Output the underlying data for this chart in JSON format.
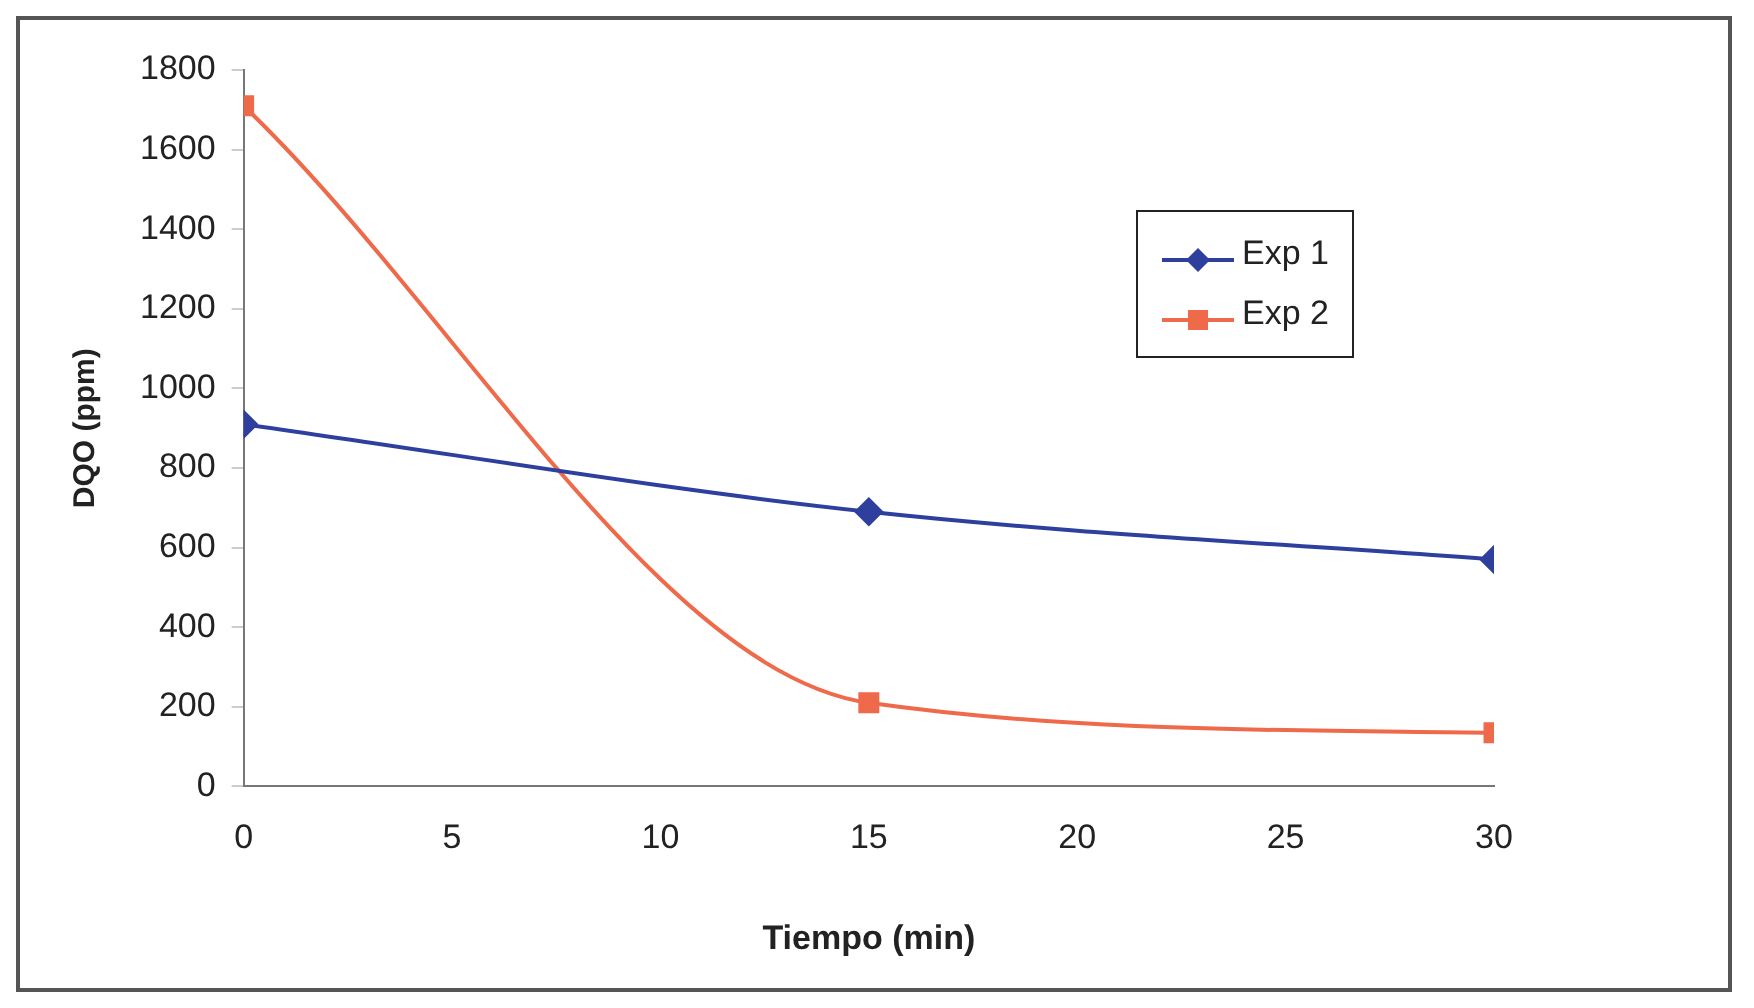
{
  "chart_data": {
    "type": "line",
    "xlabel": "Tiempo (min)",
    "ylabel": "DQO (ppm)",
    "xlim": [
      0,
      30
    ],
    "xticks": [
      0,
      5,
      10,
      15,
      20,
      25,
      30
    ],
    "ylim": [
      0,
      1800
    ],
    "yticks": [
      0,
      200,
      400,
      600,
      800,
      1000,
      1200,
      1400,
      1600,
      1800
    ],
    "grid": false,
    "legend": "top right",
    "series": [
      {
        "name": "Exp 1",
        "color": "#2e3f9e",
        "marker": "diamond",
        "x": [
          0,
          15,
          30
        ],
        "values": [
          910,
          690,
          570
        ]
      },
      {
        "name": "Exp 2",
        "color": "#ee6a4a",
        "marker": "square",
        "x": [
          0,
          15,
          30
        ],
        "values": [
          1710,
          210,
          135
        ]
      }
    ]
  }
}
